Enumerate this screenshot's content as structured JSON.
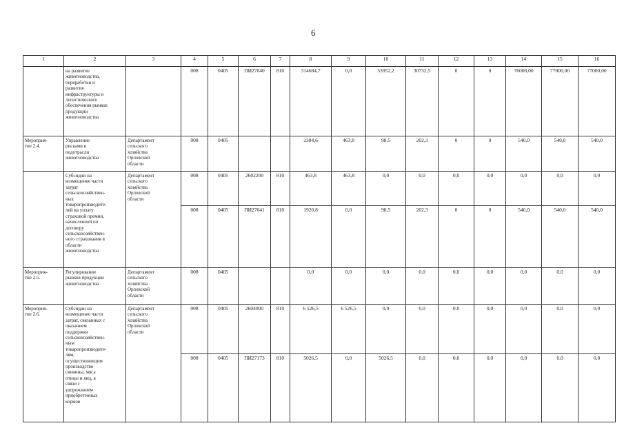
{
  "page_number": "6",
  "headers": [
    "1",
    "2",
    "3",
    "4",
    "5",
    "6",
    "7",
    "8",
    "9",
    "10",
    "11",
    "12",
    "13",
    "14",
    "15",
    "16"
  ],
  "rows": [
    {
      "c1": "",
      "c2": "на развитие\nживотноводства,\nпереработки и\nразвития\nинфраструктуры и\nлогистического\nобеспечения рынков\nпродукции\nживотноводства",
      "c3": "",
      "v": [
        "008",
        "0405",
        "ПИ27040",
        "810",
        "314684,7",
        "0,0",
        "53952,2",
        "30732,5",
        "0",
        "0",
        "76000,00",
        "77000,00",
        "77000,00"
      ]
    },
    {
      "c1": "Мероприя-\nтие 2.4.",
      "c2": "Управление\nрисками в\nподотрасли\nживотноводства",
      "c3": "Департамент\nсельского\nхозяйства\nОрловской\nобласти",
      "v": [
        "008",
        "0405",
        "",
        "",
        "2384,6",
        "463,8",
        "98,5",
        "202,3",
        "0",
        "0",
        "540,0",
        "540,0",
        "540,0"
      ]
    },
    {
      "c1": "",
      "c2": "Субсидии на\nвозмещение части\nзатрат\nсельскохозяйствен-\nных\nтоваропроизводите-\nлей на уплату\nстраховой премии,\nначисленной по\nдоговору\nсельскохозяйствен-\nного страхования в\nобласти\nживотноводства",
      "c3": "Департамент\nсельского\nхозяйства\nОрловской\nобласти",
      "v": [
        "008",
        "0405",
        "2602200",
        "810",
        "463,8",
        "463,8",
        "0,0",
        "0,0",
        "0,0",
        "0,0",
        "0,0",
        "0,0",
        "0,0"
      ]
    },
    {
      "v": [
        "008",
        "0405",
        "ПИ27041",
        "810",
        "1920,8",
        "0,0",
        "98,5",
        "202,3",
        "0",
        "0",
        "540,0",
        "540,0",
        "540,0"
      ]
    },
    {
      "c1": "Мероприя-\nтие 2.5.",
      "c2": "Регулирование\nрынков продукции\nживотноводства",
      "c3": "Департамент\nсельского\nхозяйства\nОрловской\nобласти",
      "v": [
        "008",
        "0405",
        "",
        "",
        "0,0",
        "0,0",
        "0,0",
        "0,0",
        "0,0",
        "0,0",
        "0,0",
        "0,0",
        "0,0"
      ]
    },
    {
      "c1": "Мероприя-\nтие 2.6.",
      "c2": "Субсидии на\nвозмещение части\nзатрат, связанных с\nоказанием\nподдержки\nсельскохозяйствен-\nным\nтоваропроизводите-\nлям,\nосуществляющим\nпроизводство\nсвинины, мяса\nптицы и яиц, в\nсвязи с\nудорожанием\nприобретенных\nкормов",
      "c3": "Департамент\nсельского\nхозяйства\nОрловской\nобласти",
      "v": [
        "008",
        "0405",
        "2604000",
        "810",
        "6 526,5",
        "6 526,5",
        "0,0",
        "0,0",
        "0,0",
        "0,0",
        "0,0",
        "0,0",
        "0,0"
      ]
    },
    {
      "v": [
        "008",
        "0405",
        "ПИ27173",
        "810",
        "5026,5",
        "0,0",
        "5026,5",
        "0,0",
        "0,0",
        "0,0",
        "0,0",
        "0,0",
        "0,0"
      ]
    }
  ]
}
